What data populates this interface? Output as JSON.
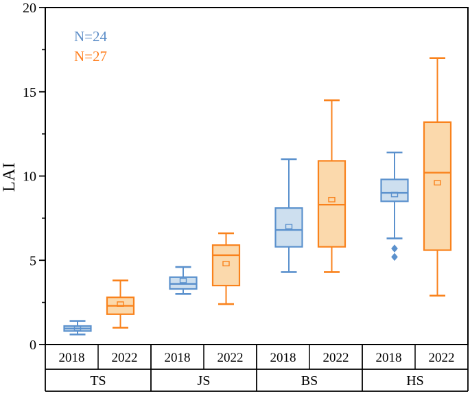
{
  "figure": {
    "ylabel": "LAI"
  },
  "chart_data": {
    "type": "boxplot",
    "title": "",
    "xlabel": "",
    "ylabel": "LAI",
    "ylim": [
      0,
      20
    ],
    "yticks": [
      0,
      5,
      10,
      15,
      20
    ],
    "minor_yticks": [
      2.5,
      7.5,
      12.5,
      17.5
    ],
    "grid": false,
    "legend_position": "top-left",
    "legend": [
      {
        "label": "N=24",
        "series": "2018",
        "color": "#5b8dc8"
      },
      {
        "label": "N=27",
        "series": "2022",
        "color": "#ff7d1a"
      }
    ],
    "groups": [
      "TS",
      "JS",
      "BS",
      "HS"
    ],
    "x_categories": [
      "2018",
      "2022"
    ],
    "series": [
      {
        "name": "2018",
        "stroke": "#5b91cd",
        "fill": "#cddfef",
        "boxes": [
          {
            "group": "TS",
            "whisker_low": 0.6,
            "q1": 0.8,
            "median": 0.95,
            "q3": 1.1,
            "whisker_high": 1.4,
            "mean": 0.95,
            "outliers": []
          },
          {
            "group": "JS",
            "whisker_low": 3.0,
            "q1": 3.3,
            "median": 3.6,
            "q3": 4.0,
            "whisker_high": 4.6,
            "mean": 3.8,
            "outliers": []
          },
          {
            "group": "BS",
            "whisker_low": 4.3,
            "q1": 5.8,
            "median": 6.8,
            "q3": 8.1,
            "whisker_high": 11.0,
            "mean": 7.0,
            "outliers": []
          },
          {
            "group": "HS",
            "whisker_low": 6.3,
            "q1": 8.5,
            "median": 9.0,
            "q3": 9.8,
            "whisker_high": 11.4,
            "mean": 8.9,
            "outliers": [
              5.7,
              5.2
            ]
          }
        ]
      },
      {
        "name": "2022",
        "stroke": "#f9821c",
        "fill": "#fbd9ac",
        "boxes": [
          {
            "group": "TS",
            "whisker_low": 1.0,
            "q1": 1.8,
            "median": 2.3,
            "q3": 2.8,
            "whisker_high": 3.8,
            "mean": 2.4,
            "outliers": []
          },
          {
            "group": "JS",
            "whisker_low": 2.4,
            "q1": 3.5,
            "median": 5.3,
            "q3": 5.9,
            "whisker_high": 6.6,
            "mean": 4.8,
            "outliers": []
          },
          {
            "group": "BS",
            "whisker_low": 4.3,
            "q1": 5.8,
            "median": 8.3,
            "q3": 10.9,
            "whisker_high": 14.5,
            "mean": 8.6,
            "outliers": []
          },
          {
            "group": "HS",
            "whisker_low": 2.9,
            "q1": 5.6,
            "median": 10.2,
            "q3": 13.2,
            "whisker_high": 17.0,
            "mean": 9.6,
            "outliers": []
          }
        ]
      }
    ],
    "axis_color": "#000000"
  }
}
